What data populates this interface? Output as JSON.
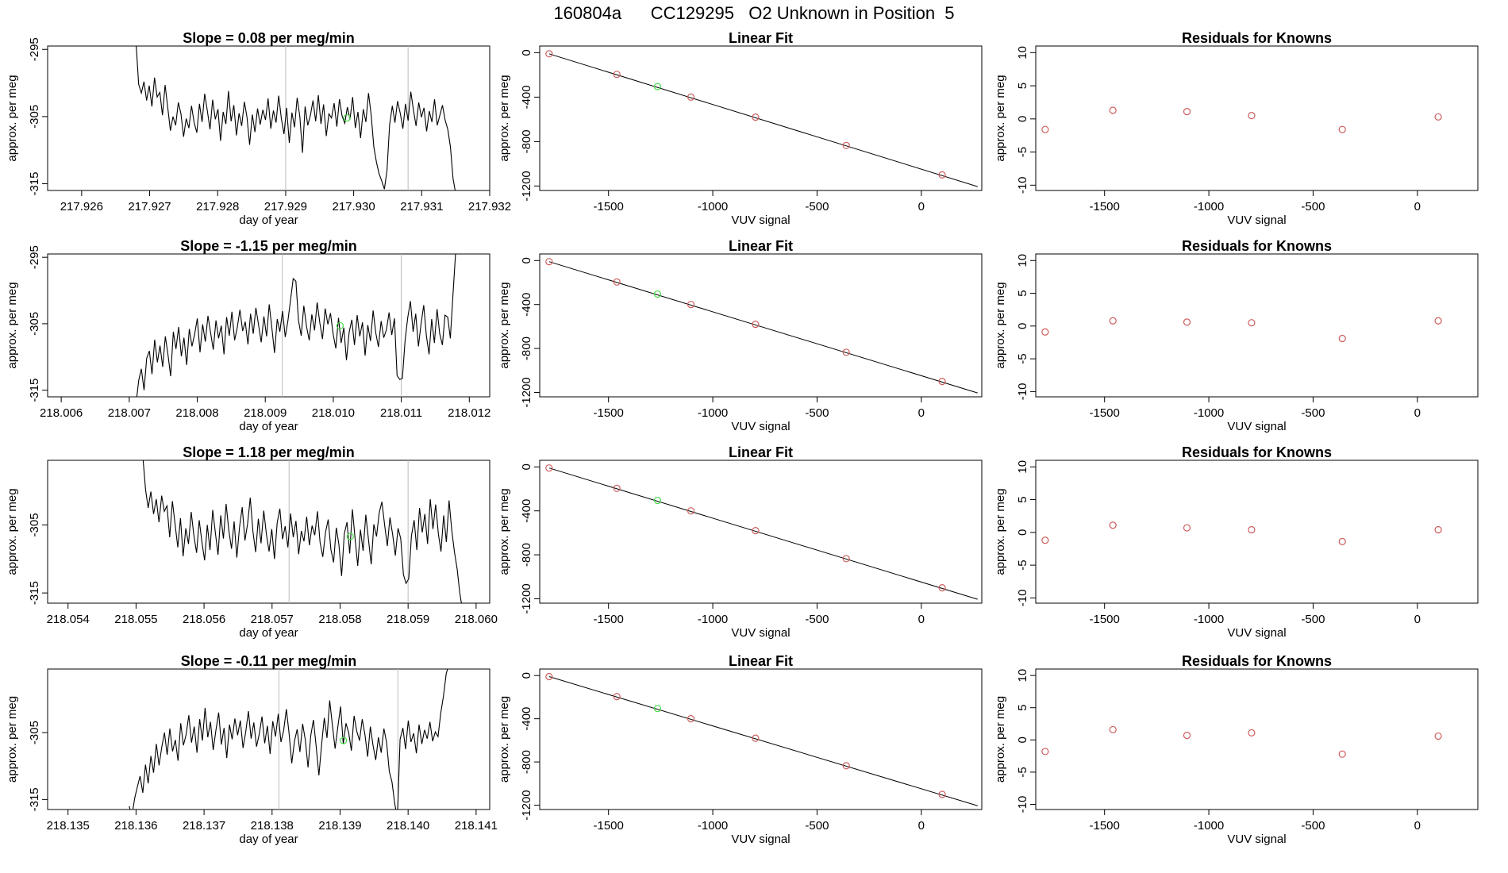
{
  "page": {
    "title": "160804a      CC129295   O2 Unknown in Position  5"
  },
  "colors": {
    "trace": "#000000",
    "gridline": "#bbbbbb",
    "known_point": "#cd5c5c",
    "unknown_point": "#44dd44",
    "axis": "#000000"
  },
  "chart_data": [
    {
      "type": "line",
      "row": 1,
      "panel": "time-series",
      "title": "Slope =  0.08  per meg/min",
      "xlabel": "day of year",
      "ylabel": "approx. per meg",
      "xlim": [
        217.9255,
        217.932
      ],
      "ylim": [
        -316,
        -294.5
      ],
      "xticks": [
        217.926,
        217.927,
        217.928,
        217.929,
        217.93,
        217.931,
        217.932
      ],
      "xtick_labels": [
        "217.926",
        "217.927",
        "217.928",
        "217.929",
        "217.930",
        "217.931",
        "217.932"
      ],
      "yticks": [
        -295,
        -305,
        -315
      ],
      "ytick_labels": [
        "-295",
        "-305",
        "-315"
      ],
      "x_start": 217.9268,
      "x_end": 217.9315,
      "vlines": [
        217.929,
        217.9308
      ],
      "unknown_point": {
        "x": 217.9299,
        "y": -305.2
      },
      "values": [
        -294,
        -300.2,
        -301.5,
        -299.8,
        -302.6,
        -300.4,
        -303.5,
        -299.2,
        -302.1,
        -301.4,
        -304.8,
        -300.3,
        -303.6,
        -307.1,
        -305.0,
        -306.3,
        -302.9,
        -304.6,
        -308.0,
        -305.3,
        -306.7,
        -303.4,
        -305.9,
        -307.4,
        -303.1,
        -305.8,
        -301.6,
        -304.2,
        -306.9,
        -302.5,
        -305.4,
        -303.9,
        -308.6,
        -304.3,
        -306.1,
        -301.2,
        -305.7,
        -303.3,
        -307.8,
        -304.5,
        -306.4,
        -302.8,
        -305.1,
        -309.2,
        -304.7,
        -307.3,
        -303.8,
        -306.2,
        -304.0,
        -305.5,
        -302.3,
        -306.8,
        -304.1,
        -305.9,
        -301.9,
        -305.3,
        -307.6,
        -303.7,
        -308.9,
        -304.4,
        -306.6,
        -302.2,
        -305.0,
        -310.4,
        -303.5,
        -306.3,
        -304.8,
        -302.6,
        -305.7,
        -301.8,
        -306.1,
        -303.2,
        -307.9,
        -304.6,
        -305.2,
        -303.0,
        -306.5,
        -302.4,
        -304.9,
        -306.0,
        -303.6,
        -305.4,
        -302.1,
        -306.7,
        -304.3,
        -308.2,
        -303.9,
        -305.8,
        -301.5,
        -304.7,
        -309.5,
        -311.8,
        -313.5,
        -314.6,
        -315.8,
        -313.0,
        -306.2,
        -303.4,
        -305.9,
        -302.7,
        -304.5,
        -306.8,
        -303.1,
        -305.6,
        -301.3,
        -304.0,
        -306.4,
        -302.9,
        -305.1,
        -303.7,
        -307.2,
        -304.2,
        -305.8,
        -302.4,
        -306.3,
        -304.8,
        -303.3,
        -305.5,
        -306.9,
        -309.5,
        -314.2,
        -316.5
      ]
    },
    {
      "type": "scatter",
      "row": 1,
      "panel": "linear-fit",
      "title": "Linear Fit",
      "xlabel": "VUV signal",
      "ylabel": "approx. per meg",
      "xlim": [
        -1830,
        290
      ],
      "ylim": [
        -1240,
        60
      ],
      "xticks": [
        -1500,
        -1000,
        -500,
        0
      ],
      "xtick_labels": [
        "-1500",
        "-1000",
        "-500",
        "0"
      ],
      "yticks": [
        0,
        -400,
        -800,
        -1200
      ],
      "ytick_labels": [
        "0",
        "-400",
        "-800",
        "-1200"
      ],
      "fit_line": {
        "x": [
          -1785,
          270
        ],
        "y": [
          -10,
          -1205
        ]
      },
      "points": {
        "x": [
          -1785,
          -1460,
          -1105,
          -795,
          -360,
          100
        ],
        "y": [
          -10,
          -195,
          -400,
          -580,
          -835,
          -1100
        ]
      },
      "unknown_point": {
        "x": -1265,
        "y": -305
      }
    },
    {
      "type": "scatter",
      "row": 1,
      "panel": "residuals",
      "title": "Residuals for Knowns",
      "xlabel": "VUV signal",
      "ylabel": "approx. per meg",
      "xlim": [
        -1830,
        290
      ],
      "ylim": [
        -10.8,
        11
      ],
      "xticks": [
        -1500,
        -1000,
        -500,
        0
      ],
      "xtick_labels": [
        "-1500",
        "-1000",
        "-500",
        "0"
      ],
      "yticks": [
        10,
        5,
        0,
        -5,
        -10
      ],
      "ytick_labels": [
        "10",
        "5",
        "0",
        "-5",
        "-10"
      ],
      "points": {
        "x": [
          -1785,
          -1460,
          -1105,
          -795,
          -360,
          100
        ],
        "y": [
          -1.6,
          1.3,
          1.1,
          0.5,
          -1.6,
          0.3
        ]
      }
    },
    {
      "type": "line",
      "row": 2,
      "panel": "time-series",
      "title": "Slope =  -1.15  per meg/min",
      "xlabel": "day of year",
      "ylabel": "approx. per meg",
      "xlim": [
        218.0058,
        218.0123
      ],
      "ylim": [
        -316,
        -294.5
      ],
      "xticks": [
        218.006,
        218.007,
        218.008,
        218.009,
        218.01,
        218.011,
        218.012
      ],
      "xtick_labels": [
        "218.006",
        "218.007",
        "218.008",
        "218.009",
        "218.010",
        "218.011",
        "218.012"
      ],
      "yticks": [
        -295,
        -305,
        -315
      ],
      "ytick_labels": [
        "-295",
        "-305",
        "-315"
      ],
      "x_start": 218.0071,
      "x_end": 218.0118,
      "vlines": [
        218.00925,
        218.011
      ],
      "unknown_point": {
        "x": 218.0101,
        "y": -305.3
      },
      "values": [
        -317,
        -313.5,
        -311.8,
        -315.0,
        -310.2,
        -309.1,
        -312.6,
        -307.4,
        -310.8,
        -308.3,
        -311.5,
        -306.9,
        -309.7,
        -312.9,
        -306.2,
        -308.8,
        -305.5,
        -309.9,
        -307.1,
        -311.2,
        -305.8,
        -308.4,
        -306.6,
        -304.2,
        -309.3,
        -305.1,
        -307.7,
        -303.8,
        -306.4,
        -308.9,
        -304.5,
        -307.2,
        -305.3,
        -309.6,
        -304.0,
        -306.8,
        -303.2,
        -307.5,
        -305.6,
        -302.9,
        -306.1,
        -304.7,
        -308.1,
        -303.5,
        -306.5,
        -302.6,
        -305.2,
        -307.8,
        -303.9,
        -306.9,
        -302.1,
        -305.7,
        -309.4,
        -304.3,
        -306.2,
        -303.1,
        -307.0,
        -304.6,
        -301.4,
        -298.2,
        -298.6,
        -304.5,
        -306.8,
        -302.3,
        -305.4,
        -307.5,
        -303.6,
        -306.0,
        -301.8,
        -304.9,
        -307.3,
        -302.7,
        -305.1,
        -303.4,
        -306.6,
        -308.7,
        -304.1,
        -307.9,
        -305.6,
        -310.5,
        -306.3,
        -304.4,
        -308.2,
        -303.7,
        -306.9,
        -304.8,
        -309.8,
        -305.2,
        -307.6,
        -303.0,
        -306.4,
        -308.5,
        -304.6,
        -307.1,
        -305.9,
        -303.3,
        -306.7,
        -304.2,
        -312.8,
        -313.4,
        -313.2,
        -307.5,
        -304.1,
        -301.6,
        -306.2,
        -303.5,
        -308.4,
        -305.0,
        -302.2,
        -306.8,
        -309.6,
        -304.3,
        -307.9,
        -302.8,
        -306.5,
        -308.2,
        -303.7,
        -304.0,
        -307.2,
        -300.5,
        -294.0
      ]
    },
    {
      "type": "scatter",
      "row": 2,
      "panel": "linear-fit",
      "title": "Linear Fit",
      "xlabel": "VUV signal",
      "ylabel": "approx. per meg",
      "xlim": [
        -1830,
        290
      ],
      "ylim": [
        -1240,
        60
      ],
      "xticks": [
        -1500,
        -1000,
        -500,
        0
      ],
      "xtick_labels": [
        "-1500",
        "-1000",
        "-500",
        "0"
      ],
      "yticks": [
        0,
        -400,
        -800,
        -1200
      ],
      "ytick_labels": [
        "0",
        "-400",
        "-800",
        "-1200"
      ],
      "fit_line": {
        "x": [
          -1785,
          270
        ],
        "y": [
          -10,
          -1205
        ]
      },
      "points": {
        "x": [
          -1785,
          -1460,
          -1105,
          -795,
          -360,
          100
        ],
        "y": [
          -10,
          -195,
          -400,
          -580,
          -835,
          -1100
        ]
      },
      "unknown_point": {
        "x": -1265,
        "y": -305
      }
    },
    {
      "type": "scatter",
      "row": 2,
      "panel": "residuals",
      "title": "Residuals for Knowns",
      "xlabel": "VUV signal",
      "ylabel": "approx. per meg",
      "xlim": [
        -1830,
        290
      ],
      "ylim": [
        -10.8,
        11
      ],
      "xticks": [
        -1500,
        -1000,
        -500,
        0
      ],
      "xtick_labels": [
        "-1500",
        "-1000",
        "-500",
        "0"
      ],
      "yticks": [
        10,
        5,
        0,
        -5,
        -10
      ],
      "ytick_labels": [
        "10",
        "5",
        "0",
        "-5",
        "-10"
      ],
      "points": {
        "x": [
          -1785,
          -1460,
          -1105,
          -795,
          -360,
          100
        ],
        "y": [
          -0.9,
          0.8,
          0.6,
          0.5,
          -1.9,
          0.8
        ]
      }
    },
    {
      "type": "line",
      "row": 3,
      "panel": "time-series",
      "title": "Slope =  1.18  per meg/min",
      "xlabel": "day of year",
      "ylabel": "approx. per meg",
      "xlim": [
        218.0537,
        218.0602
      ],
      "ylim": [
        -316.5,
        -295.5
      ],
      "xticks": [
        218.054,
        218.055,
        218.056,
        218.057,
        218.058,
        218.059,
        218.06
      ],
      "xtick_labels": [
        "218.054",
        "218.055",
        "218.056",
        "218.057",
        "218.058",
        "218.059",
        "218.060"
      ],
      "yticks": [
        -305,
        -315
      ],
      "ytick_labels": [
        "-305",
        "-315"
      ],
      "x_start": 218.0551,
      "x_end": 218.0598,
      "vlines": [
        218.05725,
        218.059
      ],
      "unknown_point": {
        "x": 218.05815,
        "y": -306.7
      },
      "values": [
        -295,
        -299.8,
        -302.5,
        -300.1,
        -303.4,
        -301.2,
        -304.6,
        -300.7,
        -303.0,
        -302.2,
        -306.8,
        -301.5,
        -304.9,
        -308.3,
        -304.0,
        -309.6,
        -305.5,
        -307.8,
        -303.1,
        -306.6,
        -309.1,
        -304.3,
        -307.5,
        -310.2,
        -305.0,
        -308.7,
        -302.8,
        -306.2,
        -309.4,
        -303.6,
        -307.0,
        -301.9,
        -305.8,
        -308.5,
        -304.5,
        -309.8,
        -305.3,
        -302.4,
        -307.3,
        -304.8,
        -301.0,
        -306.0,
        -309.0,
        -304.1,
        -307.7,
        -302.9,
        -306.4,
        -308.9,
        -305.6,
        -310.0,
        -304.7,
        -302.6,
        -307.1,
        -305.2,
        -308.3,
        -303.3,
        -306.8,
        -304.4,
        -309.3,
        -305.9,
        -307.4,
        -303.8,
        -308.0,
        -305.1,
        -306.5,
        -303.0,
        -307.6,
        -309.7,
        -306.1,
        -304.2,
        -308.6,
        -310.5,
        -305.4,
        -307.9,
        -312.5,
        -306.3,
        -304.6,
        -309.2,
        -302.7,
        -306.9,
        -311.0,
        -305.7,
        -308.8,
        -303.5,
        -307.2,
        -310.8,
        -304.9,
        -306.7,
        -303.2,
        -301.6,
        -305.0,
        -308.1,
        -303.9,
        -306.4,
        -309.5,
        -305.5,
        -307.0,
        -312.3,
        -313.6,
        -312.9,
        -306.6,
        -304.3,
        -308.7,
        -302.5,
        -306.1,
        -303.4,
        -307.8,
        -301.2,
        -305.6,
        -302.0,
        -306.3,
        -308.9,
        -303.6,
        -307.5,
        -301.4,
        -305.8,
        -309.0,
        -311.5,
        -315.0,
        -317.5
      ]
    },
    {
      "type": "scatter",
      "row": 3,
      "panel": "linear-fit",
      "title": "Linear Fit",
      "xlabel": "VUV signal",
      "ylabel": "approx. per meg",
      "xlim": [
        -1830,
        290
      ],
      "ylim": [
        -1240,
        60
      ],
      "xticks": [
        -1500,
        -1000,
        -500,
        0
      ],
      "xtick_labels": [
        "-1500",
        "-1000",
        "-500",
        "0"
      ],
      "yticks": [
        0,
        -400,
        -800,
        -1200
      ],
      "ytick_labels": [
        "0",
        "-400",
        "-800",
        "-1200"
      ],
      "fit_line": {
        "x": [
          -1785,
          270
        ],
        "y": [
          -10,
          -1205
        ]
      },
      "points": {
        "x": [
          -1785,
          -1460,
          -1105,
          -795,
          -360,
          100
        ],
        "y": [
          -10,
          -195,
          -400,
          -580,
          -835,
          -1100
        ]
      },
      "unknown_point": {
        "x": -1265,
        "y": -305
      }
    },
    {
      "type": "scatter",
      "row": 3,
      "panel": "residuals",
      "title": "Residuals for Knowns",
      "xlabel": "VUV signal",
      "ylabel": "approx. per meg",
      "xlim": [
        -1830,
        290
      ],
      "ylim": [
        -10.8,
        11
      ],
      "xticks": [
        -1500,
        -1000,
        -500,
        0
      ],
      "xtick_labels": [
        "-1500",
        "-1000",
        "-500",
        "0"
      ],
      "yticks": [
        10,
        5,
        0,
        -5,
        -10
      ],
      "ytick_labels": [
        "10",
        "5",
        "0",
        "-5",
        "-10"
      ],
      "points": {
        "x": [
          -1785,
          -1460,
          -1105,
          -795,
          -360,
          100
        ],
        "y": [
          -1.2,
          1.1,
          0.7,
          0.4,
          -1.4,
          0.4
        ]
      }
    },
    {
      "type": "line",
      "row": 4,
      "panel": "time-series",
      "title": "Slope =  -0.11  per meg/min",
      "xlabel": "day of year",
      "ylabel": "approx. per meg",
      "xlim": [
        218.1347,
        218.1412
      ],
      "ylim": [
        -316.5,
        -295.5
      ],
      "xticks": [
        218.135,
        218.136,
        218.137,
        218.138,
        218.139,
        218.14,
        218.141
      ],
      "xtick_labels": [
        "218.135",
        "218.136",
        "218.137",
        "218.138",
        "218.139",
        "218.140",
        "218.141"
      ],
      "yticks": [
        -305,
        -315
      ],
      "ytick_labels": [
        "-305",
        "-315"
      ],
      "x_start": 218.1359,
      "x_end": 218.1406,
      "vlines": [
        218.1381,
        218.13985
      ],
      "unknown_point": {
        "x": 218.13905,
        "y": -306.2
      },
      "values": [
        -316,
        -317.5,
        -314.8,
        -313.1,
        -311.5,
        -314.0,
        -309.8,
        -312.6,
        -308.5,
        -311.0,
        -306.7,
        -309.9,
        -307.2,
        -305.0,
        -308.3,
        -304.4,
        -307.8,
        -306.1,
        -309.2,
        -303.6,
        -306.9,
        -305.3,
        -302.4,
        -306.5,
        -304.1,
        -308.0,
        -303.0,
        -306.2,
        -301.3,
        -305.7,
        -303.4,
        -307.6,
        -304.6,
        -302.0,
        -306.8,
        -304.3,
        -308.8,
        -303.8,
        -306.0,
        -302.9,
        -305.4,
        -303.2,
        -307.3,
        -304.9,
        -301.8,
        -305.9,
        -303.5,
        -307.1,
        -305.2,
        -302.6,
        -306.6,
        -304.0,
        -308.2,
        -303.3,
        -305.6,
        -302.2,
        -306.4,
        -304.7,
        -301.5,
        -305.1,
        -309.6,
        -306.3,
        -304.5,
        -307.9,
        -303.7,
        -306.1,
        -310.2,
        -305.5,
        -303.1,
        -307.0,
        -311.4,
        -306.8,
        -302.8,
        -305.8,
        -300.2,
        -303.9,
        -307.4,
        -304.2,
        -301.1,
        -306.7,
        -303.6,
        -305.0,
        -307.7,
        -302.5,
        -304.8,
        -306.2,
        -303.0,
        -305.3,
        -308.6,
        -304.1,
        -306.9,
        -309.1,
        -305.7,
        -308.0,
        -304.4,
        -306.5,
        -310.8,
        -312.4,
        -315.6,
        -317.8,
        -306.0,
        -304.3,
        -307.5,
        -303.2,
        -306.4,
        -305.1,
        -308.1,
        -303.8,
        -306.7,
        -304.6,
        -305.9,
        -303.4,
        -306.3,
        -304.9,
        -305.6,
        -302.1,
        -299.5,
        -296.2,
        -294.8
      ]
    },
    {
      "type": "scatter",
      "row": 4,
      "panel": "linear-fit",
      "title": "Linear Fit",
      "xlabel": "VUV signal",
      "ylabel": "approx. per meg",
      "xlim": [
        -1830,
        290
      ],
      "ylim": [
        -1240,
        60
      ],
      "xticks": [
        -1500,
        -1000,
        -500,
        0
      ],
      "xtick_labels": [
        "-1500",
        "-1000",
        "-500",
        "0"
      ],
      "yticks": [
        0,
        -400,
        -800,
        -1200
      ],
      "ytick_labels": [
        "0",
        "-400",
        "-800",
        "-1200"
      ],
      "fit_line": {
        "x": [
          -1785,
          270
        ],
        "y": [
          -10,
          -1205
        ]
      },
      "points": {
        "x": [
          -1785,
          -1460,
          -1105,
          -795,
          -360,
          100
        ],
        "y": [
          -10,
          -195,
          -400,
          -580,
          -835,
          -1100
        ]
      },
      "unknown_point": {
        "x": -1265,
        "y": -305
      }
    },
    {
      "type": "scatter",
      "row": 4,
      "panel": "residuals",
      "title": "Residuals for Knowns",
      "xlabel": "VUV signal",
      "ylabel": "approx. per meg",
      "xlim": [
        -1830,
        290
      ],
      "ylim": [
        -10.8,
        11
      ],
      "xticks": [
        -1500,
        -1000,
        -500,
        0
      ],
      "xtick_labels": [
        "-1500",
        "-1000",
        "-500",
        "0"
      ],
      "yticks": [
        10,
        5,
        0,
        -5,
        -10
      ],
      "ytick_labels": [
        "10",
        "5",
        "0",
        "-5",
        "-10"
      ],
      "points": {
        "x": [
          -1785,
          -1460,
          -1105,
          -795,
          -360,
          100
        ],
        "y": [
          -1.8,
          1.6,
          0.7,
          1.1,
          -2.2,
          0.6
        ]
      }
    }
  ]
}
